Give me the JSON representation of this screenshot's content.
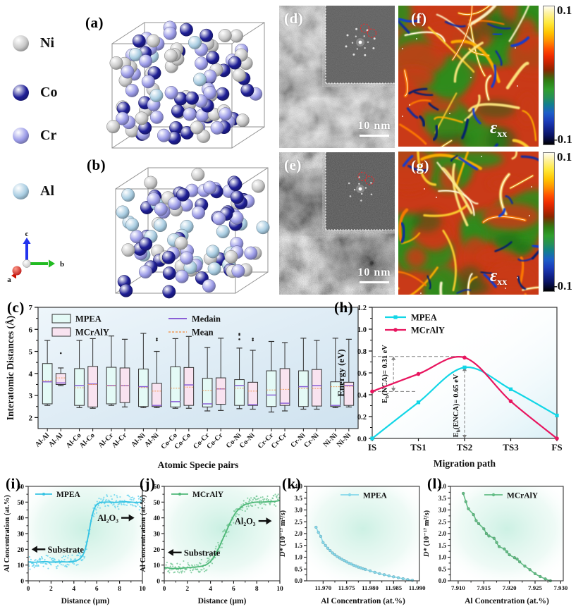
{
  "figure": {
    "atom_legend": [
      {
        "label": "Ni",
        "color": "#c8c8c8"
      },
      {
        "label": "Co",
        "color": "#1e1e96"
      },
      {
        "label": "Cr",
        "color": "#9c9ce8"
      },
      {
        "label": "Al",
        "color": "#a9cde2"
      }
    ],
    "axis_triad": {
      "a": "a",
      "b": "b",
      "c": "c"
    },
    "panel_labels": {
      "a": "(a)",
      "b": "(b)",
      "c": "(c)",
      "d": "(d)",
      "e": "(e)",
      "f": "(f)",
      "g": "(g)",
      "h": "(h)",
      "i": "(i)",
      "j": "(j)",
      "k": "(k)",
      "l": "(l)"
    },
    "tem": {
      "scale_bar": "10 nm"
    },
    "strain": {
      "symbol": "ε",
      "subscript": "xx",
      "colorbar_max": "0.1",
      "colorbar_min": "-0.1",
      "palette": {
        "base": "#c93a18",
        "green": "#2f8c1e",
        "streaks": [
          "#ffd22e",
          "#ffb000",
          "#ff7a00",
          "#ffe980",
          "#fff6c8"
        ],
        "marks": [
          "#0a2aa0",
          "#061a70",
          "#0c3ad6"
        ],
        "fft_circle": "#e03030"
      }
    }
  },
  "chart_data": [
    {
      "id": "c",
      "type": "box",
      "xlabel": "Atomic Specie pairs",
      "ylabel": "Interatomic Distances (Å)",
      "ylim": [
        1.5,
        7
      ],
      "yticks": [
        2,
        3,
        4,
        5,
        6,
        7
      ],
      "categories": [
        "Al-Al",
        "Al-Co",
        "Al-Cr",
        "Al-Ni",
        "Co-Co",
        "Co-Cr",
        "Co-Ni",
        "Cr-Cr",
        "Cr-Ni",
        "Ni-Ni"
      ],
      "legend": {
        "series": [
          "MPEA",
          "MCrAlY"
        ],
        "median_label": "Medain",
        "mean_label": "Mean"
      },
      "colors": {
        "mpea_fill": "#e4faf6",
        "mcraly_fill": "#f9e3f0",
        "edge": "#333333",
        "median": "#8a5fd6",
        "mean": "#f09a58"
      },
      "series": [
        {
          "name": "MPEA",
          "boxes": [
            {
              "whislo": 2.55,
              "q1": 2.62,
              "med": 3.62,
              "mean": 3.68,
              "q3": 4.45,
              "whishi": 5.5,
              "outliers": []
            },
            {
              "whislo": 2.45,
              "q1": 2.55,
              "med": 3.45,
              "mean": 3.35,
              "q3": 4.22,
              "whishi": 5.5,
              "outliers": []
            },
            {
              "whislo": 2.55,
              "q1": 2.62,
              "med": 3.45,
              "mean": 3.44,
              "q3": 4.28,
              "whishi": 5.7,
              "outliers": []
            },
            {
              "whislo": 2.45,
              "q1": 2.5,
              "med": 3.4,
              "mean": 3.36,
              "q3": 4.2,
              "whishi": 5.82,
              "outliers": []
            },
            {
              "whislo": 2.42,
              "q1": 2.48,
              "med": 2.72,
              "mean": 3.33,
              "q3": 4.3,
              "whishi": 5.58,
              "outliers": []
            },
            {
              "whislo": 2.3,
              "q1": 2.48,
              "med": 2.62,
              "mean": 3.22,
              "q3": 3.78,
              "whishi": 5.18,
              "outliers": [
                5.75
              ]
            },
            {
              "whislo": 2.4,
              "q1": 2.55,
              "med": 3.45,
              "mean": 3.33,
              "q3": 3.72,
              "whishi": 5.15,
              "outliers": [
                5.55,
                5.75,
                5.8
              ]
            },
            {
              "whislo": 2.25,
              "q1": 2.5,
              "med": 3.02,
              "mean": 3.25,
              "q3": 4.12,
              "whishi": 5.45,
              "outliers": []
            },
            {
              "whislo": 2.38,
              "q1": 2.5,
              "med": 3.4,
              "mean": 3.32,
              "q3": 4.12,
              "whishi": 5.6,
              "outliers": []
            },
            {
              "whislo": 2.45,
              "q1": 2.5,
              "med": 2.55,
              "mean": 3.4,
              "q3": 3.62,
              "whishi": 5.6,
              "outliers": []
            }
          ]
        },
        {
          "name": "MCrAlY",
          "boxes": [
            {
              "whislo": 3.45,
              "q1": 3.5,
              "med": 3.57,
              "mean": 3.8,
              "q3": 4.0,
              "whishi": 4.25,
              "outliers": [
                4.92
              ]
            },
            {
              "whislo": 2.42,
              "q1": 2.48,
              "med": 3.52,
              "mean": 3.5,
              "q3": 4.32,
              "whishi": 5.58,
              "outliers": []
            },
            {
              "whislo": 2.48,
              "q1": 2.68,
              "med": 3.45,
              "mean": 3.45,
              "q3": 4.25,
              "whishi": 5.55,
              "outliers": []
            },
            {
              "whislo": 2.45,
              "q1": 2.5,
              "med": 2.55,
              "mean": 3.2,
              "q3": 3.55,
              "whishi": 5.0,
              "outliers": [
                5.5,
                5.58
              ]
            },
            {
              "whislo": 2.42,
              "q1": 2.55,
              "med": 3.48,
              "mean": 3.38,
              "q3": 4.27,
              "whishi": 5.68,
              "outliers": []
            },
            {
              "whislo": 2.32,
              "q1": 2.6,
              "med": 3.3,
              "mean": 3.3,
              "q3": 3.8,
              "whishi": 5.6,
              "outliers": []
            },
            {
              "whislo": 2.38,
              "q1": 2.55,
              "med": 2.58,
              "mean": 3.2,
              "q3": 3.6,
              "whishi": 5.05,
              "outliers": [
                5.5,
                5.58
              ]
            },
            {
              "whislo": 2.3,
              "q1": 2.55,
              "med": 2.65,
              "mean": 3.28,
              "q3": 4.22,
              "whishi": 5.4,
              "outliers": []
            },
            {
              "whislo": 2.38,
              "q1": 2.52,
              "med": 3.45,
              "mean": 3.32,
              "q3": 4.18,
              "whishi": 5.5,
              "outliers": []
            },
            {
              "whislo": 2.48,
              "q1": 2.55,
              "med": 3.45,
              "mean": 3.42,
              "q3": 3.6,
              "whishi": 5.55,
              "outliers": []
            }
          ]
        }
      ]
    },
    {
      "id": "h",
      "type": "line",
      "xlabel": "Migration path",
      "ylabel": "Energy (eV)",
      "categories": [
        "IS",
        "TS1",
        "TS2",
        "TS3",
        "FS"
      ],
      "ylim": [
        0,
        1.2
      ],
      "yticks": [
        "0.0",
        "0.2",
        "0.4",
        "0.6",
        "0.8",
        "1.0",
        "1.2"
      ],
      "series": [
        {
          "name": "MPEA",
          "color": "#12d6e6",
          "marker": "square",
          "values": [
            0.0,
            0.33,
            0.65,
            0.45,
            0.21
          ]
        },
        {
          "name": "MCrAlY",
          "color": "#e8155f",
          "marker": "circle",
          "values": [
            0.43,
            0.59,
            0.74,
            0.34,
            0.0
          ]
        }
      ],
      "annotations": [
        {
          "parts": [
            {
              "t": "E"
            },
            {
              "t": "b",
              "sub": true
            },
            {
              "t": "(NCA)= 0.31 eV"
            }
          ],
          "x": 0.46,
          "y1": 0.43,
          "y2": 0.75,
          "guide_hi_to": 2,
          "guide_lo_to": 0.95
        },
        {
          "parts": [
            {
              "t": "E"
            },
            {
              "t": "b",
              "sub": true
            },
            {
              "t": "(ENCA)= 0.65 eV"
            }
          ],
          "x": 2,
          "y1": 0.0,
          "y2": 0.65
        }
      ]
    },
    {
      "id": "i",
      "type": "scatter-line",
      "legend": "MPEA",
      "color": "#35c3e3",
      "scatter_color": "#63d3ef",
      "noise": 2.6,
      "xlabel": "Distance (μm)",
      "ylabel": "Al Concentration (at.%)",
      "xlim": [
        0,
        10
      ],
      "ylim": [
        0,
        60
      ],
      "xticks": [
        0,
        2,
        4,
        6,
        8,
        10
      ],
      "yticks": [
        0,
        10,
        20,
        30,
        40,
        50,
        60
      ],
      "annotations": {
        "substrate": {
          "text": "Substrate",
          "y": 20
        },
        "oxide": {
          "text": "Al₂O₃",
          "y": 40
        }
      },
      "curve": {
        "x": [
          0,
          0.5,
          1,
          1.5,
          2,
          2.5,
          3,
          3.5,
          4,
          4.3,
          4.6,
          4.9,
          5.1,
          5.3,
          5.5,
          5.7,
          5.9,
          6.1,
          6.4,
          6.8,
          7.2,
          7.6,
          8,
          8.5,
          9,
          9.5,
          10
        ],
        "y": [
          12,
          11.8,
          12,
          12.2,
          11.9,
          12,
          12.1,
          12,
          12.4,
          13,
          14.5,
          18,
          23,
          30,
          38,
          44,
          47.5,
          49,
          49.8,
          50,
          50,
          49.8,
          50,
          50.2,
          50,
          49.8,
          50
        ]
      }
    },
    {
      "id": "j",
      "type": "scatter-line",
      "legend": "MCrAlY",
      "color": "#4fb878",
      "scatter_color": "#72c794",
      "noise": 2.4,
      "xlabel": "Distance (μm)",
      "ylabel": "Al Concentration (at.%)",
      "xlim": [
        0,
        10
      ],
      "ylim": [
        0,
        60
      ],
      "xticks": [
        0,
        2,
        4,
        6,
        8,
        10
      ],
      "yticks": [
        0,
        10,
        20,
        30,
        40,
        50,
        60
      ],
      "annotations": {
        "substrate": {
          "text": "Substrate",
          "y": 18
        },
        "oxide": {
          "text": "Al₂O₃",
          "y": 38
        }
      },
      "curve": {
        "x": [
          0,
          0.5,
          1,
          1.5,
          2,
          2.5,
          3,
          3.4,
          3.8,
          4.2,
          4.6,
          5,
          5.4,
          5.8,
          6.2,
          6.6,
          7,
          7.5,
          8,
          8.5,
          9,
          9.5,
          10
        ],
        "y": [
          8.5,
          8,
          7.8,
          8,
          8.3,
          8.6,
          9,
          9.6,
          11,
          14,
          19,
          25.5,
          32,
          38.5,
          43.5,
          46.5,
          48.5,
          49.5,
          50,
          50,
          50.2,
          50.4,
          51
        ]
      }
    },
    {
      "id": "k",
      "type": "line",
      "legend": "MPEA",
      "color": "#86d8ea",
      "xlabel": "Al Concentration (at.%)",
      "ylabel_parts": [
        {
          "t": "D*",
          "i": true
        },
        {
          "t": " (10⁻¹⁷ m²/s)"
        }
      ],
      "xlim": [
        11.9665,
        11.9905
      ],
      "ylim": [
        0,
        4
      ],
      "xticks": [
        "11.970",
        "11.975",
        "11.980",
        "11.985",
        "11.990"
      ],
      "yticks": [
        "0.0",
        "0.5",
        "1.0",
        "1.5",
        "2.0",
        "2.5",
        "3.0",
        "3.5",
        "4.0"
      ],
      "x": [
        11.9685,
        11.969,
        11.9695,
        11.97,
        11.9705,
        11.971,
        11.9715,
        11.972,
        11.9725,
        11.973,
        11.9735,
        11.974,
        11.9745,
        11.975,
        11.9755,
        11.976,
        11.9765,
        11.977,
        11.9775,
        11.978,
        11.9785,
        11.979,
        11.98,
        11.981,
        11.982,
        11.983,
        11.984,
        11.985,
        11.986,
        11.987,
        11.988,
        11.989
      ],
      "y": [
        2.27,
        2.05,
        1.88,
        1.62,
        1.5,
        1.38,
        1.28,
        1.18,
        1.1,
        1.03,
        0.97,
        0.91,
        0.86,
        0.8,
        0.75,
        0.71,
        0.66,
        0.62,
        0.58,
        0.55,
        0.51,
        0.48,
        0.42,
        0.36,
        0.3,
        0.26,
        0.21,
        0.17,
        0.13,
        0.09,
        0.05,
        0.02
      ]
    },
    {
      "id": "l",
      "type": "line",
      "legend": "MCrAlY",
      "color": "#63bd85",
      "xlabel": "Al Concentration (at.%)",
      "ylabel_parts": [
        {
          "t": "D*",
          "i": true
        },
        {
          "t": " (10⁻¹⁷ m²/s)"
        }
      ],
      "xlim": [
        7.9085,
        7.9305
      ],
      "ylim": [
        0,
        4
      ],
      "xticks": [
        "7.910",
        "7.915",
        "7.920",
        "7.925",
        "7.930"
      ],
      "yticks": [
        "0.0",
        "0.5",
        "1.0",
        "1.5",
        "2.0",
        "2.5",
        "3.0",
        "3.5",
        "4.0"
      ],
      "x": [
        7.911,
        7.9115,
        7.912,
        7.913,
        7.9135,
        7.914,
        7.915,
        7.9155,
        7.916,
        7.917,
        7.9175,
        7.918,
        7.919,
        7.9195,
        7.92,
        7.921,
        7.9215,
        7.922,
        7.923,
        7.924,
        7.925,
        7.926,
        7.927,
        7.928
      ],
      "y": [
        3.7,
        3.35,
        3.05,
        2.8,
        2.55,
        2.42,
        2.2,
        2.0,
        1.9,
        1.8,
        1.62,
        1.45,
        1.35,
        1.23,
        1.1,
        0.98,
        0.92,
        0.8,
        0.62,
        0.47,
        0.3,
        0.18,
        0.08,
        0.0
      ]
    }
  ]
}
